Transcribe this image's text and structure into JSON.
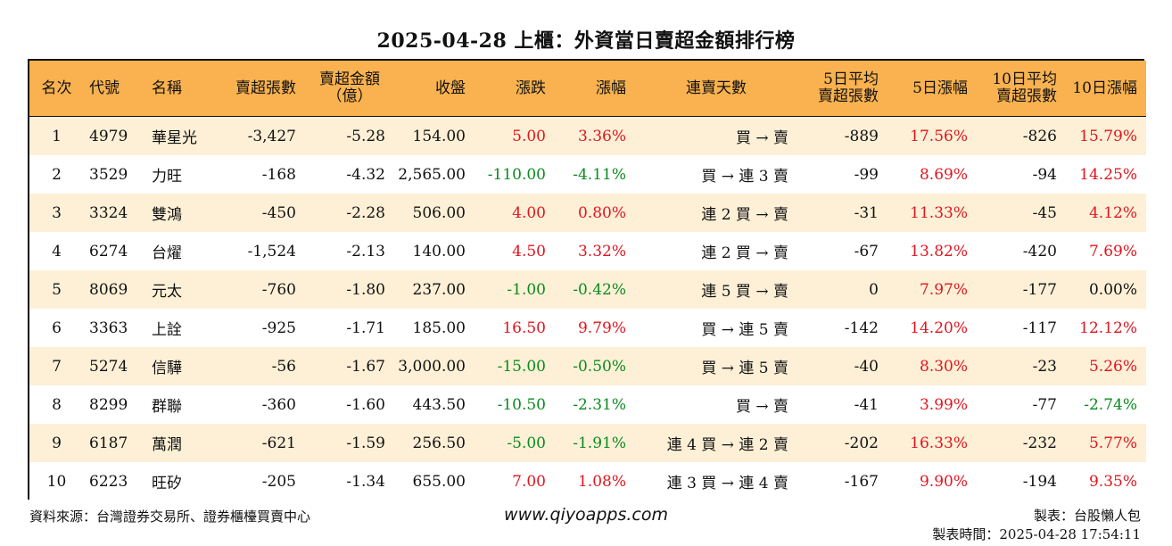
{
  "title": "2025-04-28 上櫃：外資當日賣超金額排行榜",
  "headers": {
    "rank": "名次",
    "code": "代號",
    "name": "名稱",
    "sell_shares": "賣超張數",
    "sell_amount_line1": "賣超金額",
    "sell_amount_line2": "（億）",
    "close": "收盤",
    "change": "漲跌",
    "pct": "漲幅",
    "streak": "連賣天數",
    "avg5_line1": "5日平均",
    "avg5_line2": "賣超張數",
    "pct5": "5日漲幅",
    "avg10_line1": "10日平均",
    "avg10_line2": "賣超張數",
    "pct10": "10日漲幅"
  },
  "rows": [
    {
      "rank": "1",
      "code": "4979",
      "name": "華星光",
      "sell_shares": "-3,427",
      "sell_amount": "-5.28",
      "close": "154.00",
      "change": "5.00",
      "pct": "3.36%",
      "streak": "買 → 賣",
      "avg5": "-889",
      "pct5": "17.56%",
      "avg10": "-826",
      "pct10": "15.79%"
    },
    {
      "rank": "2",
      "code": "3529",
      "name": "力旺",
      "sell_shares": "-168",
      "sell_amount": "-4.32",
      "close": "2,565.00",
      "change": "-110.00",
      "pct": "-4.11%",
      "streak": "買 → 連 3 賣",
      "avg5": "-99",
      "pct5": "8.69%",
      "avg10": "-94",
      "pct10": "14.25%"
    },
    {
      "rank": "3",
      "code": "3324",
      "name": "雙鴻",
      "sell_shares": "-450",
      "sell_amount": "-2.28",
      "close": "506.00",
      "change": "4.00",
      "pct": "0.80%",
      "streak": "連 2 買 → 賣",
      "avg5": "-31",
      "pct5": "11.33%",
      "avg10": "-45",
      "pct10": "4.12%"
    },
    {
      "rank": "4",
      "code": "6274",
      "name": "台燿",
      "sell_shares": "-1,524",
      "sell_amount": "-2.13",
      "close": "140.00",
      "change": "4.50",
      "pct": "3.32%",
      "streak": "連 2 買 → 賣",
      "avg5": "-67",
      "pct5": "13.82%",
      "avg10": "-420",
      "pct10": "7.69%"
    },
    {
      "rank": "5",
      "code": "8069",
      "name": "元太",
      "sell_shares": "-760",
      "sell_amount": "-1.80",
      "close": "237.00",
      "change": "-1.00",
      "pct": "-0.42%",
      "streak": "連 5 買 → 賣",
      "avg5": "0",
      "pct5": "7.97%",
      "avg10": "-177",
      "pct10": "0.00%"
    },
    {
      "rank": "6",
      "code": "3363",
      "name": "上詮",
      "sell_shares": "-925",
      "sell_amount": "-1.71",
      "close": "185.00",
      "change": "16.50",
      "pct": "9.79%",
      "streak": "買 → 連 5 賣",
      "avg5": "-142",
      "pct5": "14.20%",
      "avg10": "-117",
      "pct10": "12.12%"
    },
    {
      "rank": "7",
      "code": "5274",
      "name": "信驊",
      "sell_shares": "-56",
      "sell_amount": "-1.67",
      "close": "3,000.00",
      "change": "-15.00",
      "pct": "-0.50%",
      "streak": "買 → 連 5 賣",
      "avg5": "-40",
      "pct5": "8.30%",
      "avg10": "-23",
      "pct10": "5.26%"
    },
    {
      "rank": "8",
      "code": "8299",
      "name": "群聯",
      "sell_shares": "-360",
      "sell_amount": "-1.60",
      "close": "443.50",
      "change": "-10.50",
      "pct": "-2.31%",
      "streak": "買 → 賣",
      "avg5": "-41",
      "pct5": "3.99%",
      "avg10": "-77",
      "pct10": "-2.74%"
    },
    {
      "rank": "9",
      "code": "6187",
      "name": "萬潤",
      "sell_shares": "-621",
      "sell_amount": "-1.59",
      "close": "256.50",
      "change": "-5.00",
      "pct": "-1.91%",
      "streak": "連 4 買 → 連 2 賣",
      "avg5": "-202",
      "pct5": "16.33%",
      "avg10": "-232",
      "pct10": "5.77%"
    },
    {
      "rank": "10",
      "code": "6223",
      "name": "旺矽",
      "sell_shares": "-205",
      "sell_amount": "-1.34",
      "close": "655.00",
      "change": "7.00",
      "pct": "1.08%",
      "streak": "連 3 買 → 連 4 賣",
      "avg5": "-167",
      "pct5": "9.90%",
      "avg10": "-194",
      "pct10": "9.35%"
    }
  ],
  "footer": {
    "source": "資料來源：台灣證券交易所、證券櫃檯買賣中心",
    "website": "www.qiyoapps.com",
    "author": "製表：台股懶人包",
    "made_time": "製表時間：2025-04-28 17:54:11"
  },
  "colors": {
    "header_bg": "#f9b24f",
    "stripe": "#fdf0d6",
    "up": "#e0151f",
    "down": "#0a8a1f"
  }
}
